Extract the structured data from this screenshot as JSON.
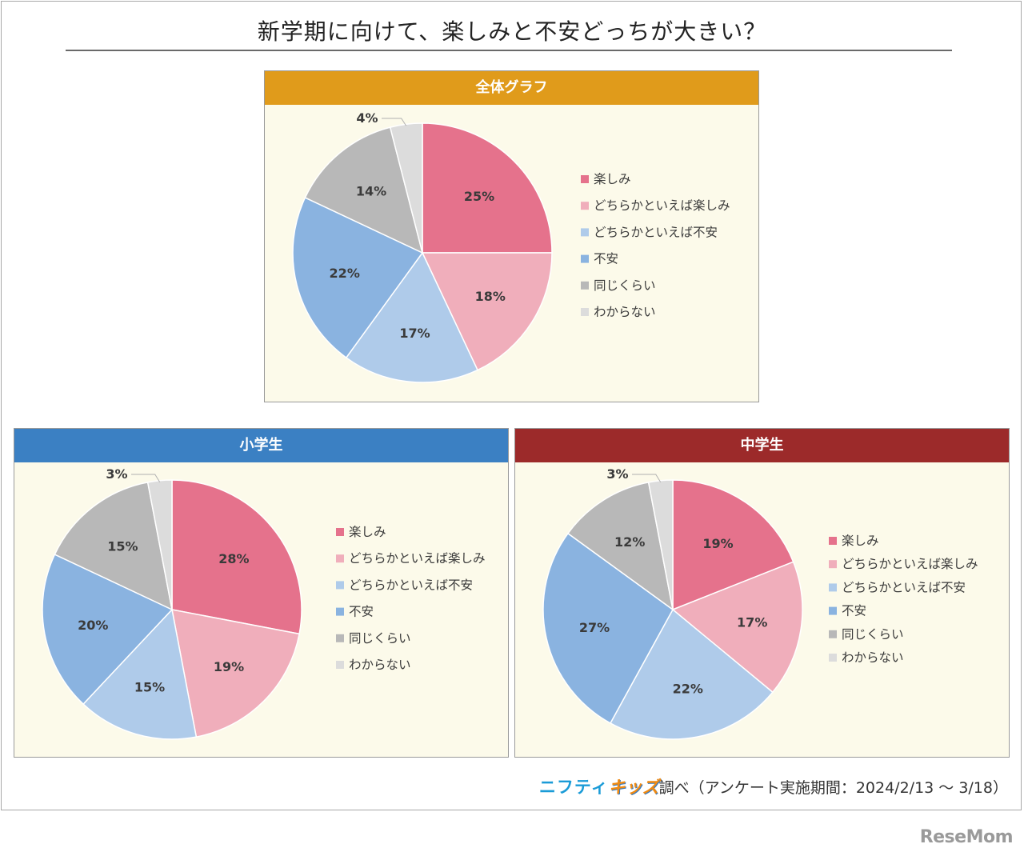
{
  "title": "新学期に向けて、楽しみと不安どっちが大きい？",
  "source": {
    "brand_part1": "ニフティ",
    "brand_part2": "キッズ",
    "text": "調べ（アンケート実施期間：2024/2/13 〜 3/18）"
  },
  "watermark": "ReseMom",
  "legend_labels": [
    "楽しみ",
    "どちらかといえば楽しみ",
    "どちらかといえば不安",
    "不安",
    "同じくらい",
    "わからない"
  ],
  "colors": {
    "series": [
      "#e5728c",
      "#f0aebb",
      "#afcbea",
      "#8ab3e0",
      "#b8b8b8",
      "#dcdcdc"
    ],
    "header_overall": "#e09b1b",
    "header_elementary": "#3b80c3",
    "header_junior_high": "#9c2a2a",
    "panel_bg": "#fcfaea"
  },
  "chart_data": [
    {
      "type": "pie",
      "title": "全体グラフ",
      "categories": [
        "楽しみ",
        "どちらかといえば楽しみ",
        "どちらかといえば不安",
        "不安",
        "同じくらい",
        "わからない"
      ],
      "values": [
        25,
        18,
        17,
        22,
        14,
        4
      ],
      "labels": [
        "25%",
        "18%",
        "17%",
        "22%",
        "14%",
        "4%"
      ],
      "legend_position": "right"
    },
    {
      "type": "pie",
      "title": "小学生",
      "categories": [
        "楽しみ",
        "どちらかといえば楽しみ",
        "どちらかといえば不安",
        "不安",
        "同じくらい",
        "わからない"
      ],
      "values": [
        28,
        19,
        15,
        20,
        15,
        3
      ],
      "labels": [
        "28%",
        "19%",
        "15%",
        "20%",
        "15%",
        "3%"
      ],
      "legend_position": "right"
    },
    {
      "type": "pie",
      "title": "中学生",
      "categories": [
        "楽しみ",
        "どちらかといえば楽しみ",
        "どちらかといえば不安",
        "不安",
        "同じくらい",
        "わからない"
      ],
      "values": [
        19,
        17,
        22,
        27,
        12,
        3
      ],
      "labels": [
        "19%",
        "17%",
        "22%",
        "27%",
        "12%",
        "3%"
      ],
      "legend_position": "right"
    }
  ]
}
